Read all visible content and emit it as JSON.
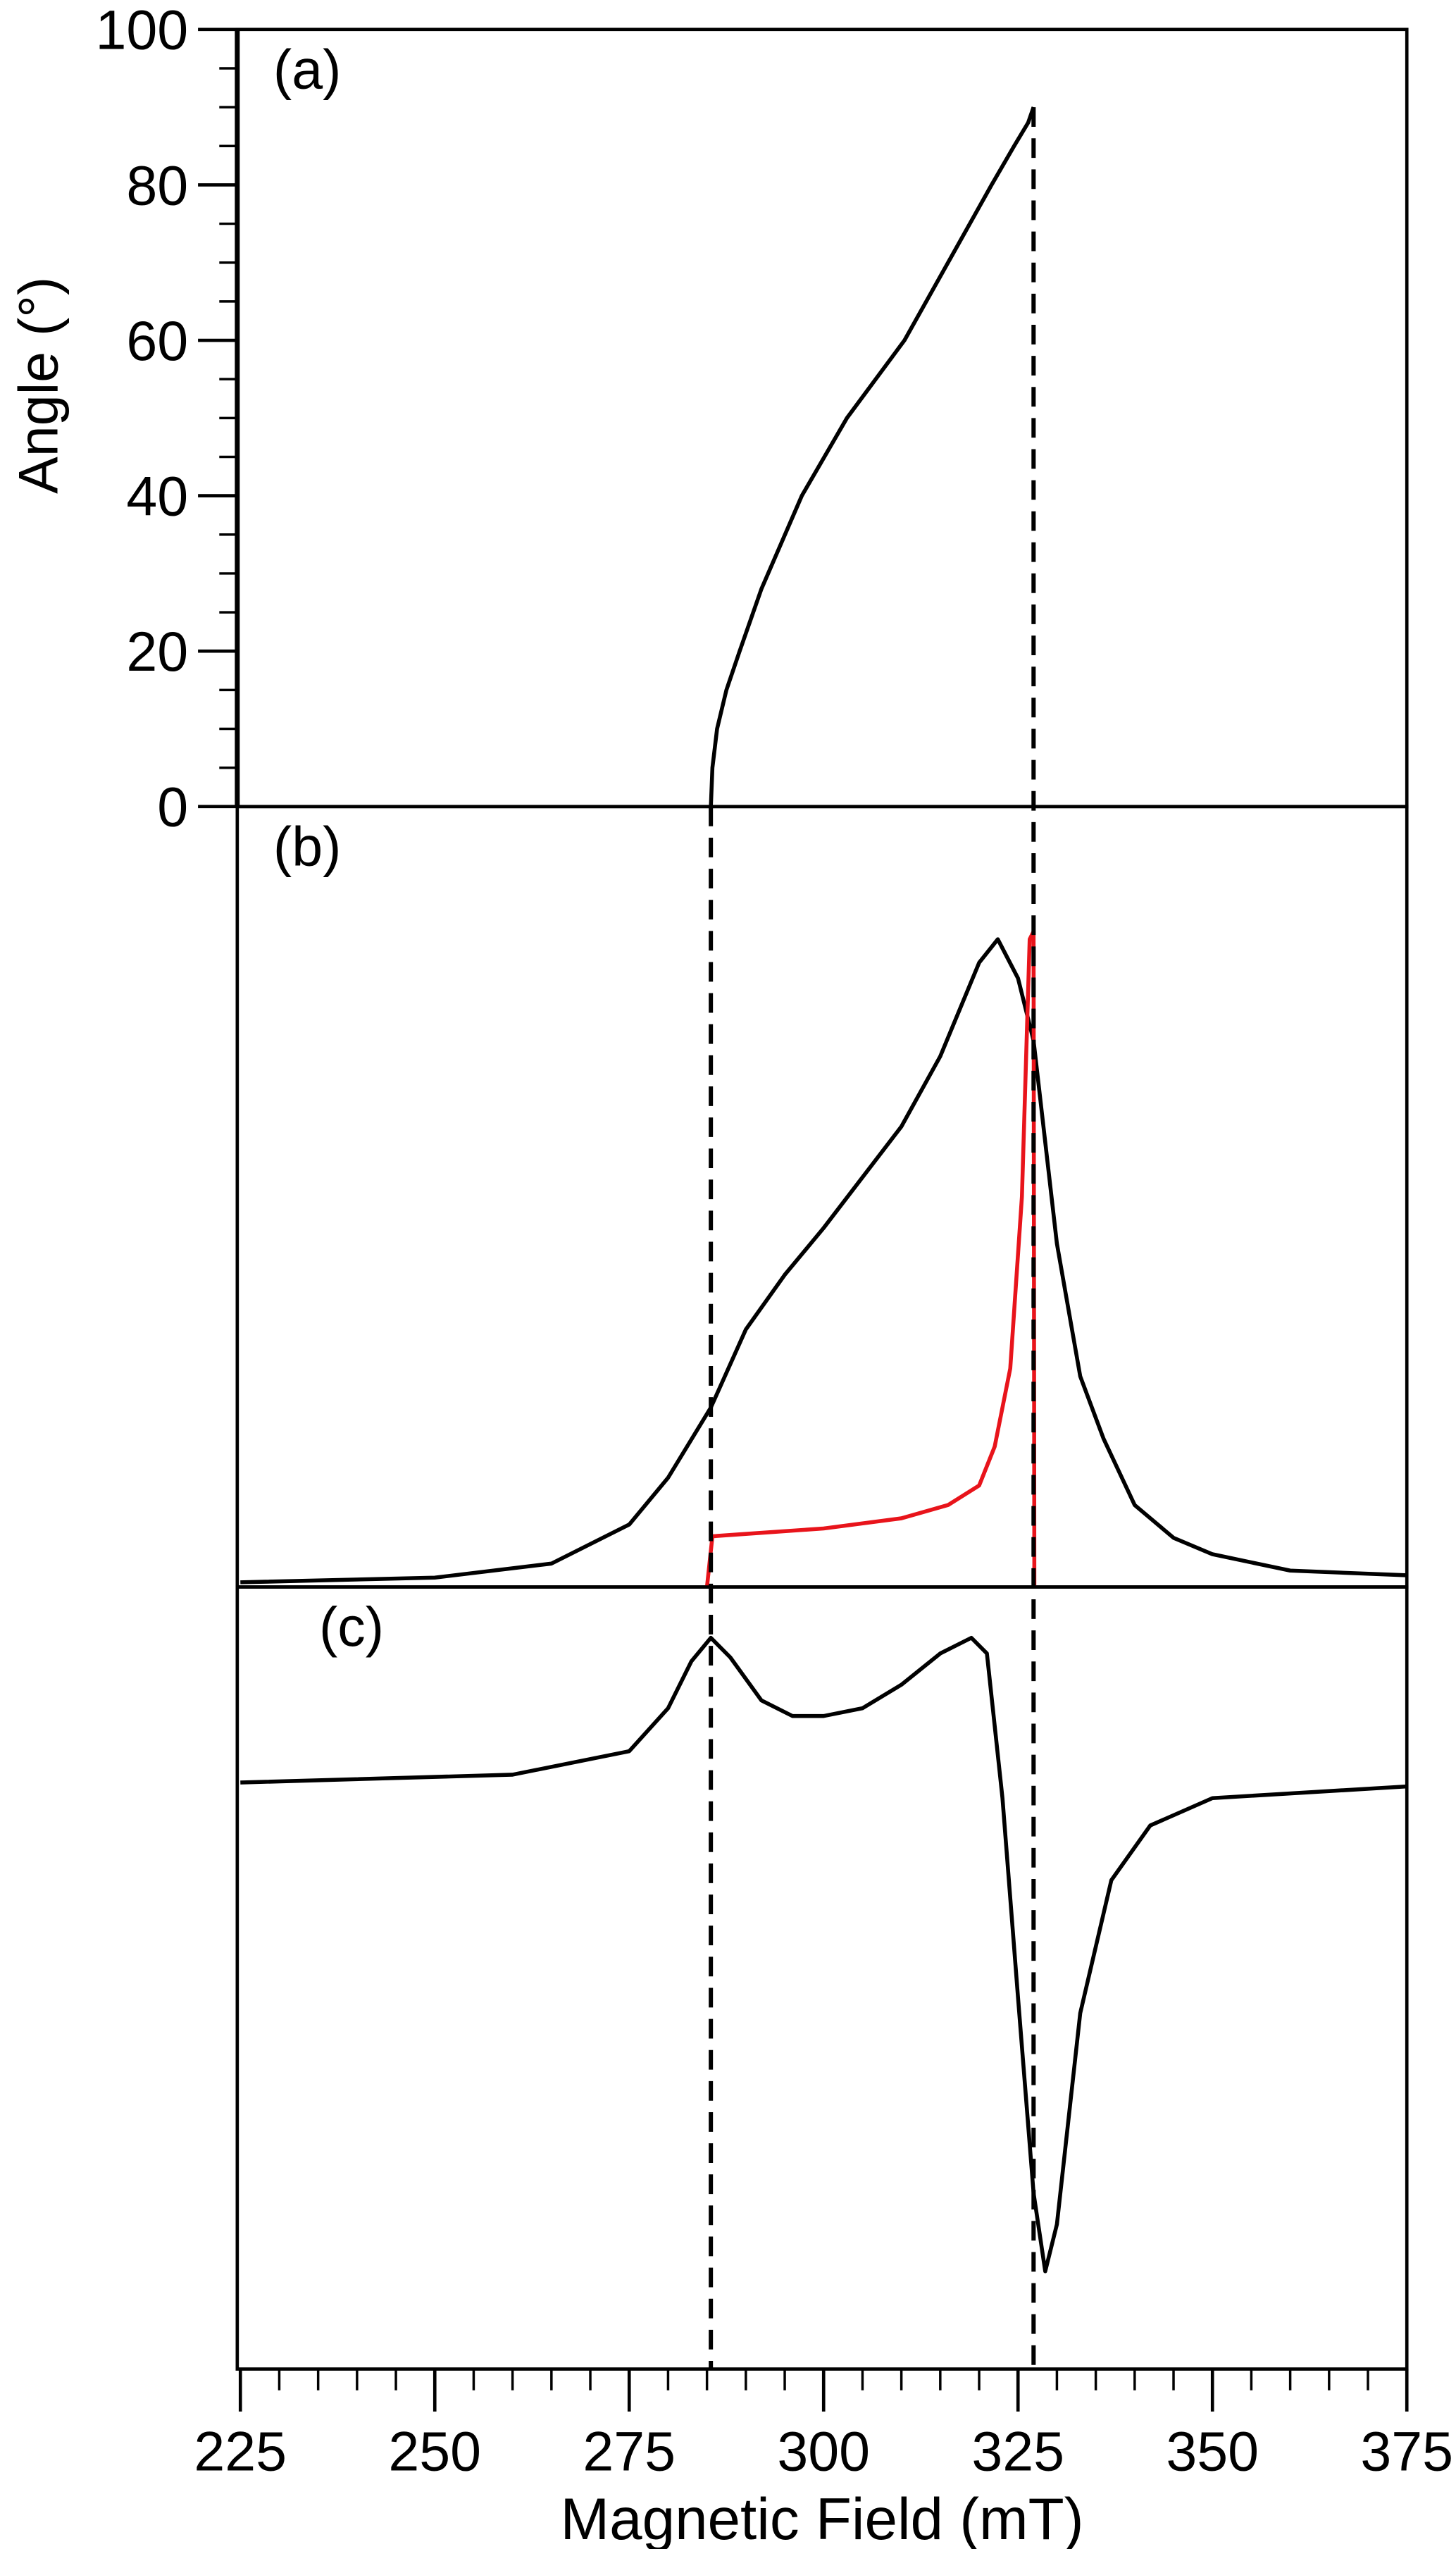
{
  "chart_data": [
    {
      "type": "line",
      "label": "(a)",
      "ylabel": "Angle (°)",
      "xlim": [
        224.6,
        375
      ],
      "ylim": [
        0,
        100
      ],
      "yticks": [
        0,
        20,
        40,
        60,
        80,
        100
      ],
      "y_minor_tick_step": 5,
      "vlines": [
        285.5,
        327
      ],
      "series": [
        {
          "color": "#000000",
          "x": [
            285.5,
            285.7,
            286.3,
            287.5,
            289.2,
            292,
            297.2,
            303,
            310.4,
            316,
            321.6,
            324.5,
            326.3,
            327
          ],
          "values": [
            0,
            5,
            10,
            15,
            20,
            28,
            40,
            50,
            60,
            70,
            80,
            85,
            88,
            90
          ]
        }
      ]
    },
    {
      "type": "line",
      "label": "(b)",
      "xlim": [
        224.6,
        375
      ],
      "ylim": [
        0,
        1
      ],
      "series": [
        {
          "color": "#000000",
          "x": [
            225,
            250,
            265,
            275,
            280,
            285.5,
            290,
            295,
            300,
            310,
            315,
            320,
            322.4,
            325,
            327,
            330,
            333,
            336,
            340,
            345,
            350,
            360,
            375
          ],
          "values": [
            0.006,
            0.012,
            0.03,
            0.08,
            0.14,
            0.23,
            0.33,
            0.4,
            0.46,
            0.59,
            0.68,
            0.8,
            0.83,
            0.78,
            0.7,
            0.44,
            0.27,
            0.19,
            0.105,
            0.063,
            0.042,
            0.021,
            0.015
          ]
        },
        {
          "color": "#e8141b",
          "x": [
            285,
            285.7,
            290,
            300,
            310,
            316,
            320,
            322,
            324,
            325.5,
            326.5,
            327,
            327.1
          ],
          "values": [
            0,
            0.065,
            0.068,
            0.075,
            0.088,
            0.105,
            0.13,
            0.18,
            0.28,
            0.5,
            0.83,
            0.84,
            0
          ]
        }
      ]
    },
    {
      "type": "line",
      "label": "(c)",
      "xlabel": "Magnetic Field (mT)",
      "xlim": [
        224.6,
        375
      ],
      "ylim": [
        -1,
        1
      ],
      "xticks": [
        225,
        250,
        275,
        300,
        325,
        350,
        375
      ],
      "x_minor_tick_step": 5,
      "series": [
        {
          "color": "#000000",
          "x": [
            225,
            260,
            275,
            280,
            283,
            285.5,
            288,
            292,
            296,
            300,
            305,
            310,
            315,
            319,
            321,
            323,
            325,
            327,
            328.5,
            330,
            333,
            337,
            342,
            350,
            375
          ],
          "values": [
            0.5,
            0.52,
            0.58,
            0.69,
            0.81,
            0.87,
            0.82,
            0.71,
            0.67,
            0.67,
            0.69,
            0.75,
            0.83,
            0.87,
            0.83,
            0.46,
            -0.05,
            -0.55,
            -0.75,
            -0.63,
            -0.09,
            0.25,
            0.39,
            0.46,
            0.49
          ]
        }
      ]
    }
  ]
}
